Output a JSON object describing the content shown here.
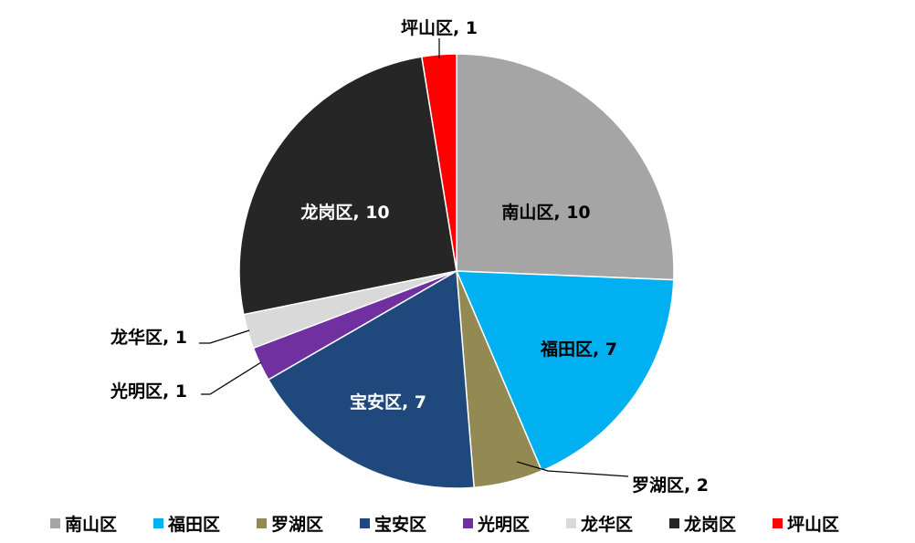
{
  "chart_data": {
    "type": "pie",
    "categories": [
      "南山区",
      "福田区",
      "罗湖区",
      "宝安区",
      "光明区",
      "龙华区",
      "龙岗区",
      "坪山区"
    ],
    "values": [
      10,
      7,
      2,
      7,
      1,
      1,
      10,
      1
    ],
    "colors": [
      "#A5A5A5",
      "#00B0F0",
      "#938953",
      "#1F497D",
      "#7030A0",
      "#D9D9D9",
      "#262626",
      "#FF0000"
    ],
    "data_labels": [
      "南山区, 10",
      "福田区, 7",
      "罗湖区, 2",
      "宝安区, 7",
      "光明区, 1",
      "龙华区, 1",
      "龙岗区, 10",
      "坪山区, 1"
    ],
    "label_colors": [
      "#000000",
      "#000000",
      "#000000",
      "#FFFFFF",
      "#000000",
      "#000000",
      "#FFFFFF",
      "#000000"
    ],
    "start_angle": "12 o'clock",
    "direction": "clockwise",
    "legend_position": "bottom"
  }
}
